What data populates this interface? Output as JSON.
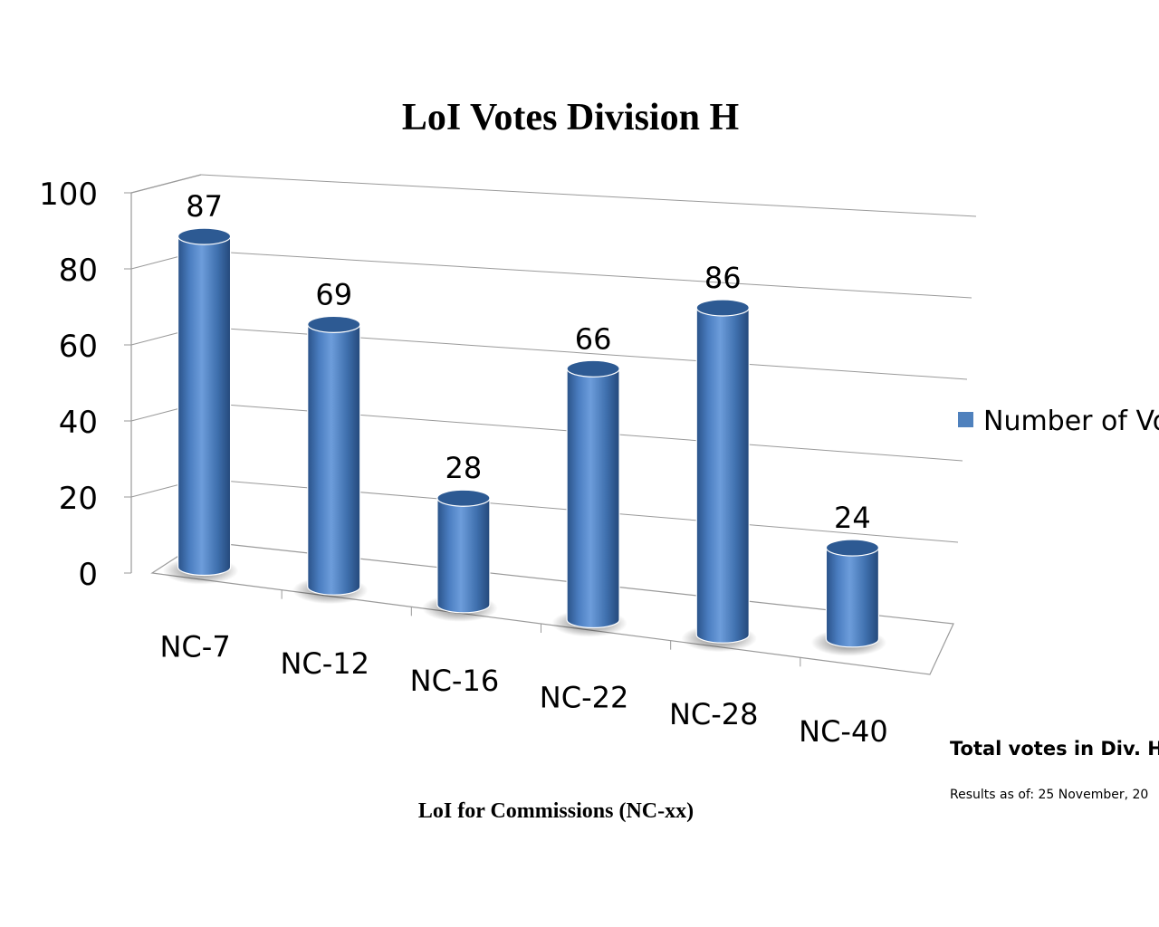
{
  "chart_data": {
    "type": "bar",
    "title": "LoI Votes Division H",
    "xlabel": "LoI for Commissions (NC-xx)",
    "ylabel": "",
    "categories": [
      "NC-7",
      "NC-12",
      "NC-16",
      "NC-22",
      "NC-28",
      "NC-40"
    ],
    "series": [
      {
        "name": "Number of Votes",
        "values": [
          87,
          69,
          28,
          66,
          86,
          24
        ]
      }
    ],
    "ylim": [
      0,
      100
    ],
    "yticks": [
      "0",
      "20",
      "40",
      "60",
      "80",
      "100"
    ],
    "grid": true,
    "style": "3d-cylinder",
    "legend_position": "right",
    "bar_color": "#4F81BD"
  },
  "notes": {
    "total": "Total votes in Div. H",
    "results_date": "Results as of: 25 November, 20"
  }
}
